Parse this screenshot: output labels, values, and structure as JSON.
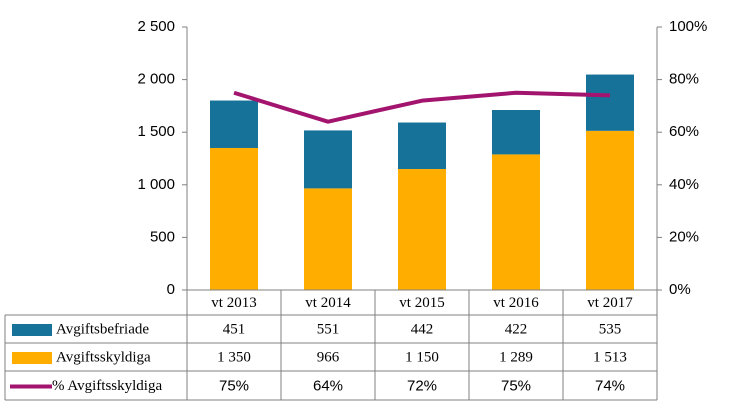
{
  "chart_data": {
    "type": "bar",
    "categories": [
      "vt 2013",
      "vt 2014",
      "vt 2015",
      "vt 2016",
      "vt 2017"
    ],
    "series": [
      {
        "name": "Avgiftsbefriade",
        "type": "bar",
        "color": "#17729a",
        "values": [
          451,
          551,
          442,
          422,
          535
        ]
      },
      {
        "name": "Avgiftsskyldiga",
        "type": "bar",
        "color": "#ffae00",
        "values": [
          1350,
          966,
          1150,
          1289,
          1513
        ],
        "value_labels": [
          "1 350",
          "966",
          "1 150",
          "1 289",
          "1 513"
        ]
      },
      {
        "name": "% Avgiftsskyldiga",
        "type": "line",
        "axis": "y2",
        "color": "#a3146f",
        "values": [
          75,
          64,
          72,
          75,
          74
        ],
        "value_labels": [
          "75%",
          "64%",
          "72%",
          "75%",
          "74%"
        ]
      }
    ],
    "ylim": [
      0,
      2500
    ],
    "yticks": [
      0,
      500,
      {
        "value": 1000,
        "label": "1 000"
      },
      {
        "value": 1500,
        "label": "1 500"
      },
      {
        "value": 2000,
        "label": "2 000"
      },
      {
        "value": 2500,
        "label": "2 500"
      }
    ],
    "y2lim": [
      0,
      100
    ],
    "y2ticks": [
      {
        "value": 0,
        "label": "0%"
      },
      {
        "value": 20,
        "label": "20%"
      },
      {
        "value": 40,
        "label": "40%"
      },
      {
        "value": 60,
        "label": "60%"
      },
      {
        "value": 80,
        "label": "80%"
      },
      {
        "value": 100,
        "label": "100%"
      }
    ],
    "stacked": true,
    "grid": false,
    "legend": "table"
  }
}
